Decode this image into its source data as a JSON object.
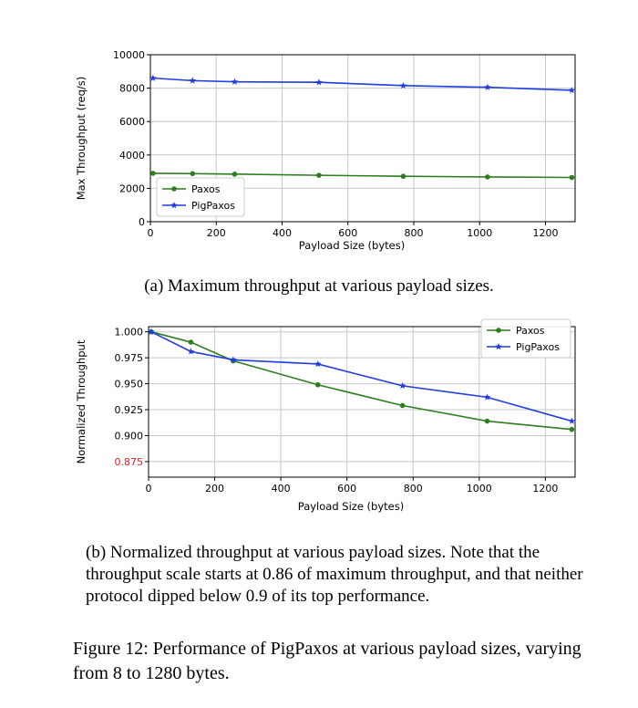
{
  "chart_data": [
    {
      "id": "a",
      "type": "line",
      "title": "",
      "xlabel": "Payload Size (bytes)",
      "ylabel": "Max Throughput (req/s)",
      "xlim": [
        0,
        1290
      ],
      "ylim": [
        0,
        10000
      ],
      "xticks": [
        0,
        200,
        400,
        600,
        800,
        1000,
        1200
      ],
      "yticks": [
        0,
        2000,
        4000,
        6000,
        8000,
        10000
      ],
      "grid": true,
      "legend_position": "lower-left",
      "series": [
        {
          "name": "Paxos",
          "color": "#2e7d1f",
          "marker": "circle",
          "x": [
            8,
            128,
            256,
            512,
            768,
            1024,
            1280
          ],
          "y": [
            2900,
            2880,
            2850,
            2780,
            2720,
            2680,
            2650
          ]
        },
        {
          "name": "PigPaxos",
          "color": "#1f3de0",
          "marker": "star",
          "x": [
            8,
            128,
            256,
            512,
            768,
            1024,
            1280
          ],
          "y": [
            8600,
            8450,
            8380,
            8350,
            8150,
            8050,
            7870
          ]
        }
      ]
    },
    {
      "id": "b",
      "type": "line",
      "title": "",
      "xlabel": "Payload Size (bytes)",
      "ylabel": "Normalized Throughput",
      "xlim": [
        0,
        1290
      ],
      "ylim": [
        0.86,
        1.005
      ],
      "xticks": [
        0,
        200,
        400,
        600,
        800,
        1000,
        1200
      ],
      "yticks": [
        0.875,
        0.9,
        0.925,
        0.95,
        0.975,
        1.0
      ],
      "ytick_labels": [
        "0.875",
        "0.900",
        "0.925",
        "0.950",
        "0.975",
        "1.000"
      ],
      "highlight_tick": {
        "label": "0.875",
        "color": "#e02020"
      },
      "grid": true,
      "legend_position": "upper-right",
      "series": [
        {
          "name": "Paxos",
          "color": "#2e7d1f",
          "marker": "circle",
          "x": [
            8,
            128,
            256,
            512,
            768,
            1024,
            1280
          ],
          "y": [
            1.0,
            0.99,
            0.972,
            0.949,
            0.929,
            0.914,
            0.906
          ]
        },
        {
          "name": "PigPaxos",
          "color": "#1f3de0",
          "marker": "star",
          "x": [
            8,
            128,
            256,
            512,
            768,
            1024,
            1280
          ],
          "y": [
            1.0,
            0.981,
            0.973,
            0.969,
            0.948,
            0.937,
            0.914
          ]
        }
      ]
    }
  ],
  "captions": {
    "a": "(a) Maximum throughput at various payload sizes.",
    "b": "(b) Normalized throughput at various payload sizes. Note that the throughput scale starts at 0.86 of maximum throughput, and that neither protocol dipped below 0.9 of its top performance.",
    "figure": "Figure 12: Performance of PigPaxos at various payload sizes, varying from 8 to 1280 bytes."
  }
}
